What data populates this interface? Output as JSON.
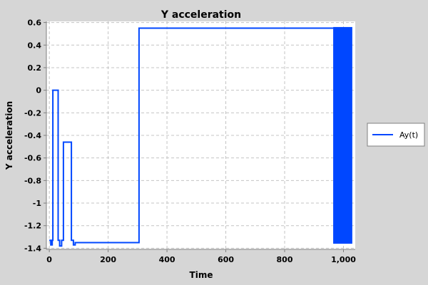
{
  "chart_data": {
    "type": "line",
    "title": "Y acceleration",
    "xlabel": "Time",
    "ylabel": "Y acceleration",
    "xlim": [
      -10,
      1040
    ],
    "ylim": [
      -1.41,
      0.61
    ],
    "x_ticks": [
      0,
      200,
      400,
      600,
      800,
      1000
    ],
    "x_tick_labels": [
      "0",
      "200",
      "400",
      "600",
      "800",
      "1,000"
    ],
    "y_ticks": [
      0.6,
      0.4,
      0.2,
      0,
      -0.2,
      -0.4,
      -0.6,
      -0.8,
      -1,
      -1.2,
      -1.4
    ],
    "y_tick_labels": [
      "0.6",
      "0.4",
      "0.2",
      "0",
      "-0.2",
      "-0.4",
      "-0.6",
      "-0.8",
      "-1",
      "-1.2",
      "-1.4"
    ],
    "grid": true,
    "legend_position": "right",
    "series": [
      {
        "name": "Ay(t)",
        "color": "#0047ff",
        "points": [
          [
            0,
            -1.33
          ],
          [
            5,
            -1.33
          ],
          [
            5,
            -1.37
          ],
          [
            10,
            -1.37
          ],
          [
            10,
            -1.33
          ],
          [
            12,
            -1.33
          ],
          [
            12,
            0
          ],
          [
            30,
            0
          ],
          [
            30,
            -1.33
          ],
          [
            35,
            -1.33
          ],
          [
            35,
            -1.38
          ],
          [
            42,
            -1.38
          ],
          [
            42,
            -1.33
          ],
          [
            48,
            -1.33
          ],
          [
            48,
            -0.46
          ],
          [
            75,
            -0.46
          ],
          [
            75,
            -1.33
          ],
          [
            82,
            -1.33
          ],
          [
            82,
            -1.37
          ],
          [
            88,
            -1.37
          ],
          [
            88,
            -1.35
          ],
          [
            305,
            -1.35
          ],
          [
            305,
            0.55
          ],
          [
            965,
            0.55
          ]
        ],
        "oscillation_band": {
          "x_start": 965,
          "x_end": 1030,
          "y_min": -1.36,
          "y_max": 0.56
        }
      }
    ]
  }
}
